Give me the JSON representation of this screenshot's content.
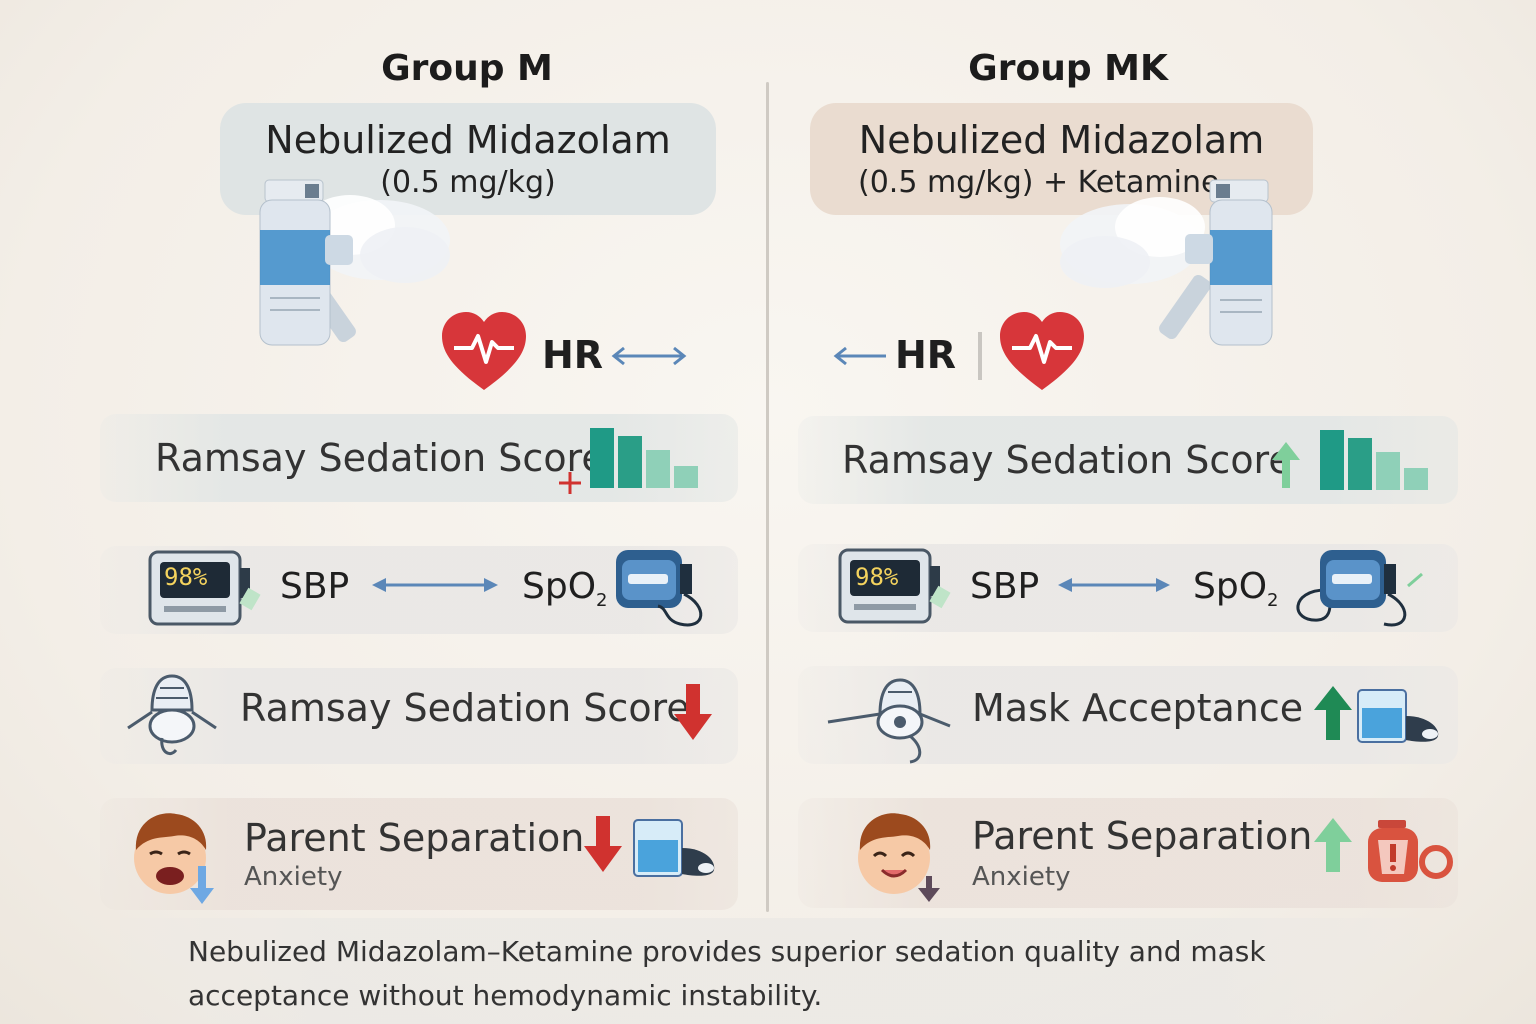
{
  "left": {
    "title": "Group M",
    "drug_name": "Nebulized Midazolam",
    "drug_dose": "(0.5 mg/kg)",
    "hr_label": "HR",
    "rows": {
      "sedation": "Ramsay Sedation Score",
      "sbp": "SBP",
      "spo2_base": "SpO",
      "spo2_sub": "2",
      "monitor_reading": "98%",
      "mask": "Ramsay Sedation Score",
      "parent": "Parent Separation",
      "parent_sub": "Anxiety"
    }
  },
  "right": {
    "title": "Group MK",
    "drug_name": "Nebulized Midazolam",
    "drug_dose": "(0.5 mg/kg) + Ketamine",
    "hr_label": "HR",
    "rows": {
      "sedation": "Ramsay Sedation Score",
      "sbp": "SBP",
      "spo2_base": "SpO",
      "spo2_sub": "2",
      "monitor_reading": "98%",
      "mask": "Mask Acceptance",
      "parent": "Parent Separation",
      "parent_sub": "Anxiety"
    }
  },
  "footer": "Nebulized Midazolam–Ketamine provides superior sedation quality and mask acceptance without hemodynamic instability.",
  "colors": {
    "heart": "#d7363a",
    "arrow_neutral": "#5b87b8",
    "arrow_down": "#d0322f",
    "arrow_up_dark": "#1f8a55",
    "arrow_up_light": "#7fcf9b",
    "bar_dark": "#1f9a86",
    "bar_light": "#8fd0b8"
  },
  "icons": [
    "nebulizer-icon",
    "heart-ecg-icon",
    "bar-chart-icon",
    "pulse-oximeter-icon",
    "blood-pressure-cuff-icon",
    "face-mask-icon",
    "child-face-icon",
    "infusion-box-icon",
    "alert-bottle-icon"
  ]
}
